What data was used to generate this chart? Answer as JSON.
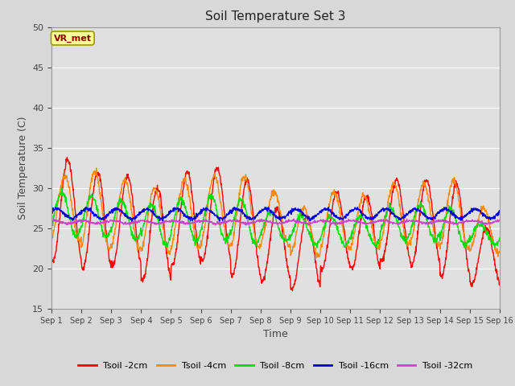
{
  "title": "Soil Temperature Set 3",
  "xlabel": "Time",
  "ylabel": "Soil Temperature (C)",
  "ylim": [
    15,
    50
  ],
  "yticks": [
    15,
    20,
    25,
    30,
    35,
    40,
    45,
    50
  ],
  "colors": {
    "Tsoil -2cm": "#ff0000",
    "Tsoil -4cm": "#ff8800",
    "Tsoil -8cm": "#00dd00",
    "Tsoil -16cm": "#0000dd",
    "Tsoil -32cm": "#cc44cc"
  },
  "legend_labels": [
    "Tsoil -2cm",
    "Tsoil -4cm",
    "Tsoil -8cm",
    "Tsoil -16cm",
    "Tsoil -32cm"
  ],
  "vr_met_label": "VR_met",
  "background_color": "#d8d8d8",
  "plot_bg_color": "#e0e0e0",
  "n_days": 15,
  "pts_per_day": 96,
  "title_fontsize": 11,
  "axis_label_fontsize": 9,
  "amp2": [
    12.5,
    12,
    11,
    11.5,
    11.5,
    11.5,
    12,
    9,
    9,
    9.5,
    9,
    10,
    10.5,
    11.5,
    7
  ],
  "min2": [
    21,
    20,
    20.5,
    18.5,
    20.5,
    21,
    19,
    18.5,
    17.5,
    20,
    20,
    21,
    20.5,
    19,
    18
  ],
  "amp4": [
    8,
    9.5,
    8.5,
    8,
    8.5,
    8.5,
    9,
    6.5,
    6,
    7,
    6.5,
    7.5,
    7.5,
    8.5,
    5.5
  ],
  "min4": [
    23.5,
    22.5,
    22.5,
    22,
    22.5,
    23,
    22.5,
    23,
    21.5,
    22.5,
    22.5,
    23,
    23,
    22.5,
    22
  ],
  "amp8": [
    5.5,
    5,
    5,
    5,
    5,
    5.5,
    5.5,
    3.5,
    3.5,
    3.5,
    3.5,
    4,
    4.5,
    4.5,
    2.5
  ],
  "min8": [
    24,
    24,
    23.5,
    23,
    23.5,
    23.5,
    23,
    23.5,
    23,
    23,
    23,
    23.5,
    23.5,
    23,
    23
  ],
  "base16": 26.2,
  "amp16": 1.2,
  "base32": 25.6,
  "amp32": 0.35,
  "phase2": -0.3,
  "phase4": 0.3,
  "phase8": 1.0,
  "phase16": 2.0,
  "phase32": 2.8
}
